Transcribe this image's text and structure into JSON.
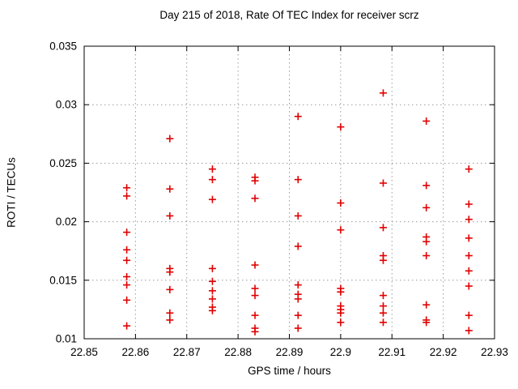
{
  "chart_data": {
    "type": "scatter",
    "title": "Day 215 of 2018, Rate Of TEC Index for receiver scrz",
    "xlabel": "GPS time / hours",
    "ylabel": "ROTI / TECUs",
    "xlim": [
      22.85,
      22.93
    ],
    "ylim": [
      0.01,
      0.035
    ],
    "xtick_labels": [
      "22.85",
      "22.86",
      "22.87",
      "22.88",
      "22.89",
      "22.9",
      "22.91",
      "22.92",
      "22.93"
    ],
    "xtick_values": [
      22.85,
      22.86,
      22.87,
      22.88,
      22.89,
      22.9,
      22.91,
      22.92,
      22.93
    ],
    "ytick_labels": [
      "0.01",
      "0.015",
      "0.02",
      "0.025",
      "0.03",
      "0.035"
    ],
    "ytick_values": [
      0.01,
      0.015,
      0.02,
      0.025,
      0.03,
      0.035
    ],
    "grid": "dotted",
    "legend_position": "none",
    "marker": "plus",
    "marker_color": "#e00000",
    "grid_color": "#9a9a9a",
    "border_color": "#000000",
    "series": [
      {
        "name": "roti",
        "color": "#e00000",
        "points": [
          [
            22.8583,
            0.0229
          ],
          [
            22.8583,
            0.0222
          ],
          [
            22.8583,
            0.0191
          ],
          [
            22.8583,
            0.0176
          ],
          [
            22.8583,
            0.0167
          ],
          [
            22.8583,
            0.0153
          ],
          [
            22.8583,
            0.0146
          ],
          [
            22.8583,
            0.0133
          ],
          [
            22.8583,
            0.0111
          ],
          [
            22.8667,
            0.0271
          ],
          [
            22.8667,
            0.0228
          ],
          [
            22.8667,
            0.0205
          ],
          [
            22.8667,
            0.016
          ],
          [
            22.8667,
            0.0157
          ],
          [
            22.8667,
            0.0142
          ],
          [
            22.8667,
            0.0122
          ],
          [
            22.8667,
            0.0116
          ],
          [
            22.875,
            0.0245
          ],
          [
            22.875,
            0.0236
          ],
          [
            22.875,
            0.0219
          ],
          [
            22.875,
            0.016
          ],
          [
            22.875,
            0.0149
          ],
          [
            22.875,
            0.0141
          ],
          [
            22.875,
            0.0134
          ],
          [
            22.875,
            0.0127
          ],
          [
            22.875,
            0.0124
          ],
          [
            22.8833,
            0.0238
          ],
          [
            22.8833,
            0.0235
          ],
          [
            22.8833,
            0.022
          ],
          [
            22.8833,
            0.0163
          ],
          [
            22.8833,
            0.0143
          ],
          [
            22.8833,
            0.0137
          ],
          [
            22.8833,
            0.012
          ],
          [
            22.8833,
            0.0109
          ],
          [
            22.8833,
            0.0106
          ],
          [
            22.8917,
            0.029
          ],
          [
            22.8917,
            0.0236
          ],
          [
            22.8917,
            0.0205
          ],
          [
            22.8917,
            0.0179
          ],
          [
            22.8917,
            0.0146
          ],
          [
            22.8917,
            0.0138
          ],
          [
            22.8917,
            0.0134
          ],
          [
            22.8917,
            0.012
          ],
          [
            22.8917,
            0.0109
          ],
          [
            22.9,
            0.0281
          ],
          [
            22.9,
            0.0216
          ],
          [
            22.9,
            0.0193
          ],
          [
            22.9,
            0.0143
          ],
          [
            22.9,
            0.014
          ],
          [
            22.9,
            0.0128
          ],
          [
            22.9,
            0.0125
          ],
          [
            22.9,
            0.0122
          ],
          [
            22.9,
            0.0114
          ],
          [
            22.9083,
            0.031
          ],
          [
            22.9083,
            0.0233
          ],
          [
            22.9083,
            0.0195
          ],
          [
            22.9083,
            0.0171
          ],
          [
            22.9083,
            0.0167
          ],
          [
            22.9083,
            0.0137
          ],
          [
            22.9083,
            0.0128
          ],
          [
            22.9083,
            0.0122
          ],
          [
            22.9083,
            0.0114
          ],
          [
            22.9167,
            0.0286
          ],
          [
            22.9167,
            0.0231
          ],
          [
            22.9167,
            0.0212
          ],
          [
            22.9167,
            0.0187
          ],
          [
            22.9167,
            0.0183
          ],
          [
            22.9167,
            0.0171
          ],
          [
            22.9167,
            0.0129
          ],
          [
            22.9167,
            0.0116
          ],
          [
            22.9167,
            0.0114
          ],
          [
            22.925,
            0.0245
          ],
          [
            22.925,
            0.0215
          ],
          [
            22.925,
            0.0202
          ],
          [
            22.925,
            0.0186
          ],
          [
            22.925,
            0.0171
          ],
          [
            22.925,
            0.0158
          ],
          [
            22.925,
            0.0145
          ],
          [
            22.925,
            0.012
          ],
          [
            22.925,
            0.0107
          ]
        ]
      }
    ]
  }
}
